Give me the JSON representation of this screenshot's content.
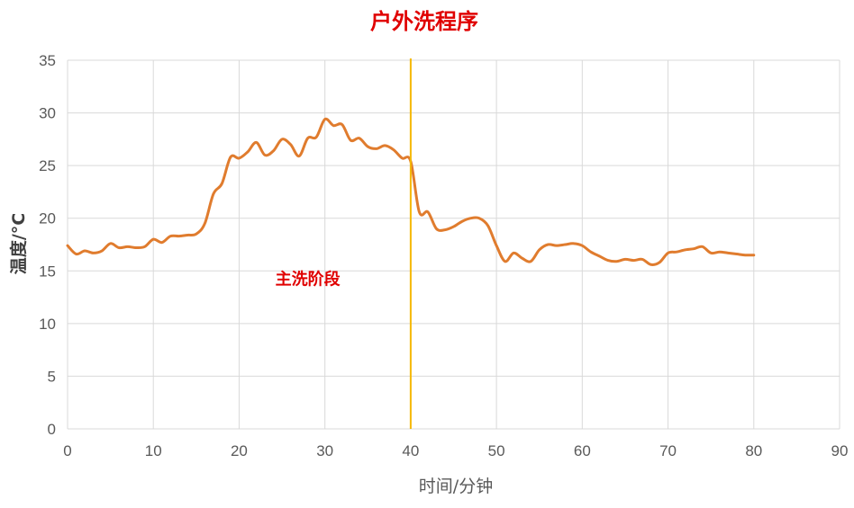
{
  "chart_data": {
    "type": "line",
    "title": "户外洗程序",
    "xlabel": "时间/分钟",
    "ylabel": "温度/°C",
    "xlim": [
      0,
      90
    ],
    "ylim": [
      0,
      35
    ],
    "x_ticks": [
      0,
      10,
      20,
      30,
      40,
      50,
      60,
      70,
      80,
      90
    ],
    "y_ticks": [
      0,
      5,
      10,
      15,
      20,
      25,
      30,
      35
    ],
    "grid": true,
    "legend": "none",
    "series": [
      {
        "color": "#E07C2E",
        "points": [
          [
            0,
            17.4
          ],
          [
            1,
            16.6
          ],
          [
            2,
            16.9
          ],
          [
            3,
            16.7
          ],
          [
            4,
            16.9
          ],
          [
            5,
            17.6
          ],
          [
            6,
            17.2
          ],
          [
            7,
            17.3
          ],
          [
            8,
            17.2
          ],
          [
            9,
            17.3
          ],
          [
            10,
            18.0
          ],
          [
            11,
            17.7
          ],
          [
            12,
            18.3
          ],
          [
            13,
            18.3
          ],
          [
            14,
            18.4
          ],
          [
            15,
            18.5
          ],
          [
            16,
            19.5
          ],
          [
            17,
            22.3
          ],
          [
            18,
            23.3
          ],
          [
            19,
            25.8
          ],
          [
            20,
            25.7
          ],
          [
            21,
            26.3
          ],
          [
            22,
            27.2
          ],
          [
            23,
            26.0
          ],
          [
            24,
            26.4
          ],
          [
            25,
            27.5
          ],
          [
            26,
            27.0
          ],
          [
            27,
            25.9
          ],
          [
            28,
            27.6
          ],
          [
            29,
            27.7
          ],
          [
            30,
            29.4
          ],
          [
            31,
            28.8
          ],
          [
            32,
            28.9
          ],
          [
            33,
            27.4
          ],
          [
            34,
            27.6
          ],
          [
            35,
            26.8
          ],
          [
            36,
            26.6
          ],
          [
            37,
            26.9
          ],
          [
            38,
            26.5
          ],
          [
            39,
            25.7
          ],
          [
            40,
            25.4
          ],
          [
            41,
            20.6
          ],
          [
            42,
            20.6
          ],
          [
            43,
            19.0
          ],
          [
            44,
            18.9
          ],
          [
            45,
            19.2
          ],
          [
            46,
            19.7
          ],
          [
            47,
            20.0
          ],
          [
            48,
            20.0
          ],
          [
            49,
            19.3
          ],
          [
            50,
            17.4
          ],
          [
            51,
            15.9
          ],
          [
            52,
            16.7
          ],
          [
            53,
            16.2
          ],
          [
            54,
            15.9
          ],
          [
            55,
            17.0
          ],
          [
            56,
            17.5
          ],
          [
            57,
            17.4
          ],
          [
            58,
            17.5
          ],
          [
            59,
            17.6
          ],
          [
            60,
            17.4
          ],
          [
            61,
            16.8
          ],
          [
            62,
            16.4
          ],
          [
            63,
            16.0
          ],
          [
            64,
            15.9
          ],
          [
            65,
            16.1
          ],
          [
            66,
            16.0
          ],
          [
            67,
            16.1
          ],
          [
            68,
            15.6
          ],
          [
            69,
            15.8
          ],
          [
            70,
            16.7
          ],
          [
            71,
            16.8
          ],
          [
            72,
            17.0
          ],
          [
            73,
            17.1
          ],
          [
            74,
            17.3
          ],
          [
            75,
            16.7
          ],
          [
            76,
            16.8
          ],
          [
            77,
            16.7
          ],
          [
            78,
            16.6
          ],
          [
            79,
            16.5
          ],
          [
            80,
            16.5
          ]
        ]
      }
    ],
    "annotations": [
      {
        "type": "vline",
        "x": 40,
        "color": "#F5B800"
      },
      {
        "type": "text",
        "text": "主洗阶段",
        "x": 28,
        "y": 13.7,
        "color": "#E00000"
      }
    ],
    "title_color": "#E00000"
  }
}
